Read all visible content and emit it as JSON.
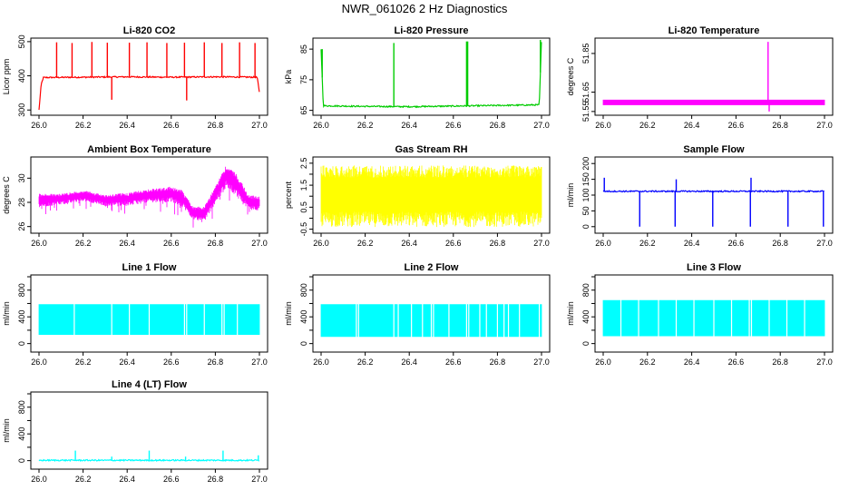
{
  "figure": {
    "title": "NWR_061026  2 Hz Diagnostics"
  },
  "chart_data": [
    {
      "type": "line",
      "title": "Li-820 CO2",
      "ylabel": "Licor ppm",
      "xlim": [
        26.0,
        27.0
      ],
      "ylim": [
        290,
        505
      ],
      "xticks": [
        "26.0",
        "26.2",
        "26.4",
        "26.6",
        "26.8",
        "27.0"
      ],
      "yticks": [
        300,
        400,
        500
      ],
      "color": "#ff0000",
      "series": [
        {
          "name": "CO2",
          "x": [
            26.0,
            26.01,
            26.02,
            26.2,
            26.4,
            26.6,
            26.8,
            26.99,
            27.0
          ],
          "values": [
            300,
            375,
            395,
            396,
            397,
            396,
            397,
            396,
            350
          ]
        }
      ],
      "spikes": [
        {
          "x": 26.08,
          "values": [
            498
          ]
        },
        {
          "x": 26.15,
          "values": [
            496
          ]
        },
        {
          "x": 26.24,
          "values": [
            499
          ]
        },
        {
          "x": 26.31,
          "values": [
            497
          ]
        },
        {
          "x": 26.33,
          "values": [
            330
          ]
        },
        {
          "x": 26.41,
          "values": [
            497
          ]
        },
        {
          "x": 26.49,
          "values": [
            498
          ]
        },
        {
          "x": 26.58,
          "values": [
            496
          ]
        },
        {
          "x": 26.66,
          "values": [
            497
          ]
        },
        {
          "x": 26.67,
          "values": [
            328
          ]
        },
        {
          "x": 26.75,
          "values": [
            498
          ]
        },
        {
          "x": 26.83,
          "values": [
            496
          ]
        },
        {
          "x": 26.91,
          "values": [
            498
          ]
        },
        {
          "x": 26.98,
          "values": [
            496
          ]
        }
      ]
    },
    {
      "type": "line",
      "title": "Li-820 Pressure",
      "ylabel": "kPa",
      "xlim": [
        26.0,
        27.0
      ],
      "ylim": [
        64,
        88
      ],
      "xticks": [
        "26.0",
        "26.2",
        "26.4",
        "26.6",
        "26.8",
        "27.0"
      ],
      "yticks": [
        65,
        75,
        85
      ],
      "color": "#00cc00",
      "series": [
        {
          "name": "Pressure",
          "x": [
            26.0,
            26.01,
            26.2,
            26.4,
            26.6,
            26.8,
            26.99,
            27.0
          ],
          "values": [
            85,
            66.5,
            66.3,
            66.2,
            66.4,
            66.6,
            66.8,
            88
          ]
        }
      ],
      "spikes": [
        {
          "x": 26.005,
          "values": [
            85
          ]
        },
        {
          "x": 26.33,
          "values": [
            87
          ]
        },
        {
          "x": 26.66,
          "values": [
            87.5
          ]
        },
        {
          "x": 26.665,
          "values": [
            87.5
          ]
        },
        {
          "x": 26.995,
          "values": [
            88
          ]
        }
      ]
    },
    {
      "type": "area",
      "title": "Li-820 Temperature",
      "ylabel": "degrees C",
      "xlim": [
        26.0,
        27.0
      ],
      "ylim": [
        51.54,
        51.92
      ],
      "xticks": [
        "26.0",
        "26.2",
        "26.4",
        "26.6",
        "26.8",
        "27.0"
      ],
      "yticks": [
        "51.55",
        "51.65",
        "51.85"
      ],
      "color": "#ff00ff",
      "series": [
        {
          "name": "Temperature",
          "x": [
            26.0,
            27.0
          ],
          "low": [
            51.583,
            51.583
          ],
          "high": [
            51.611,
            51.611
          ]
        }
      ],
      "spikes": [
        {
          "x": 26.745,
          "values": [
            51.91
          ]
        },
        {
          "x": 26.75,
          "values": [
            51.55
          ]
        }
      ]
    },
    {
      "type": "area",
      "title": "Ambient Box Temperature",
      "ylabel": "degrees C",
      "xlim": [
        26.0,
        27.0
      ],
      "ylim": [
        25.6,
        31.6
      ],
      "xticks": [
        "26.0",
        "26.2",
        "26.4",
        "26.6",
        "26.8",
        "27.0"
      ],
      "yticks": [
        26,
        28,
        30
      ],
      "color": "#ff00ff",
      "series": [
        {
          "name": "Ambient",
          "x": [
            26.0,
            26.1,
            26.2,
            26.3,
            26.4,
            26.5,
            26.6,
            26.65,
            26.7,
            26.75,
            26.8,
            26.85,
            26.9,
            26.95,
            27.0
          ],
          "low": [
            27.6,
            27.8,
            28.1,
            27.7,
            27.7,
            28.0,
            28.0,
            27.6,
            26.6,
            26.4,
            27.9,
            29.2,
            28.4,
            27.4,
            27.3
          ],
          "high": [
            28.7,
            28.7,
            29.0,
            28.6,
            28.8,
            29.1,
            29.3,
            29.0,
            27.6,
            27.7,
            29.3,
            31.1,
            30.3,
            28.6,
            28.5
          ]
        }
      ]
    },
    {
      "type": "area",
      "title": "Gas Stream RH",
      "ylabel": "percent",
      "xlim": [
        26.0,
        27.0
      ],
      "ylim": [
        -0.6,
        2.7
      ],
      "xticks": [
        "26.0",
        "26.2",
        "26.4",
        "26.6",
        "26.8",
        "27.0"
      ],
      "yticks": [
        "-0.5",
        "0.5",
        "1.5",
        "2.5"
      ],
      "ytickall": [
        "-0.5",
        "0.0",
        "0.5",
        "1.0",
        "1.5",
        "2.0",
        "2.5"
      ],
      "color": "#ffff00",
      "series": [
        {
          "name": "RH",
          "x": [
            26.0,
            27.0
          ],
          "low": [
            -0.4,
            -0.4
          ],
          "high": [
            2.4,
            2.4
          ]
        }
      ]
    },
    {
      "type": "line",
      "title": "Sample Flow",
      "ylabel": "ml/min",
      "xlim": [
        26.0,
        27.0
      ],
      "ylim": [
        -15,
        215
      ],
      "xticks": [
        "26.0",
        "26.2",
        "26.4",
        "26.6",
        "26.8",
        "27.0"
      ],
      "yticks": [
        0,
        50,
        100,
        150,
        200
      ],
      "color": "#0000ff",
      "series": [
        {
          "name": "Sample",
          "x": [
            26.0,
            27.0
          ],
          "values": [
            112,
            112
          ]
        }
      ],
      "spikes": [
        {
          "x": 26.005,
          "values": [
            155
          ]
        },
        {
          "x": 26.165,
          "values": [
            0
          ]
        },
        {
          "x": 26.325,
          "values": [
            0
          ]
        },
        {
          "x": 26.33,
          "values": [
            150
          ]
        },
        {
          "x": 26.495,
          "values": [
            0
          ]
        },
        {
          "x": 26.665,
          "values": [
            0
          ]
        },
        {
          "x": 26.668,
          "values": [
            155
          ]
        },
        {
          "x": 26.835,
          "values": [
            0
          ]
        },
        {
          "x": 26.995,
          "values": [
            0
          ]
        }
      ]
    },
    {
      "type": "area",
      "title": "Line 1 Flow",
      "ylabel": "ml/min",
      "xlim": [
        26.0,
        27.0
      ],
      "ylim": [
        -100,
        1000
      ],
      "xticks": [
        "26.0",
        "26.2",
        "26.4",
        "26.6",
        "26.8",
        "27.0"
      ],
      "yticks": [
        0,
        400,
        800
      ],
      "ytickall": [
        0,
        200,
        400,
        600,
        800,
        1000
      ],
      "color": "#00ffff",
      "series": [
        {
          "name": "Line1",
          "x": [
            26.0,
            27.0
          ],
          "low": [
            130,
            130
          ],
          "high": [
            590,
            590
          ]
        }
      ],
      "gaps": [
        26.16,
        26.33,
        26.41,
        26.5,
        26.66,
        26.67,
        26.75,
        26.83,
        26.84,
        26.9
      ]
    },
    {
      "type": "area",
      "title": "Line 2 Flow",
      "ylabel": "ml/min",
      "xlim": [
        26.0,
        27.0
      ],
      "ylim": [
        -100,
        1000
      ],
      "xticks": [
        "26.0",
        "26.2",
        "26.4",
        "26.6",
        "26.8",
        "27.0"
      ],
      "yticks": [
        0,
        400,
        800
      ],
      "ytickall": [
        0,
        200,
        400,
        600,
        800,
        1000
      ],
      "color": "#00ffff",
      "series": [
        {
          "name": "Line2",
          "x": [
            26.0,
            27.0
          ],
          "low": [
            100,
            100
          ],
          "high": [
            590,
            590
          ]
        }
      ],
      "gaps": [
        26.16,
        26.17,
        26.33,
        26.35,
        26.41,
        26.46,
        26.5,
        26.51,
        26.58,
        26.66,
        26.67,
        26.72,
        26.75,
        26.8,
        26.83,
        26.85,
        26.9,
        26.99
      ]
    },
    {
      "type": "area",
      "title": "Line 3 Flow",
      "ylabel": "ml/min",
      "xlim": [
        26.0,
        27.0
      ],
      "ylim": [
        -100,
        1000
      ],
      "xticks": [
        "26.0",
        "26.2",
        "26.4",
        "26.6",
        "26.8",
        "27.0"
      ],
      "yticks": [
        0,
        400,
        800
      ],
      "ytickall": [
        0,
        200,
        400,
        600,
        800,
        1000
      ],
      "color": "#00ffff",
      "series": [
        {
          "name": "Line3",
          "x": [
            26.0,
            27.0
          ],
          "low": [
            110,
            110
          ],
          "high": [
            650,
            650
          ]
        }
      ],
      "gaps": [
        26.08,
        26.16,
        26.25,
        26.33,
        26.41,
        26.5,
        26.58,
        26.66,
        26.67,
        26.75,
        26.83,
        26.91
      ]
    },
    {
      "type": "line",
      "title": "Line 4 (LT) Flow",
      "ylabel": "ml/min",
      "xlim": [
        26.0,
        27.0
      ],
      "ylim": [
        -100,
        1000
      ],
      "xticks": [
        "26.0",
        "26.2",
        "26.4",
        "26.6",
        "26.8",
        "27.0"
      ],
      "yticks": [
        0,
        400,
        800
      ],
      "ytickall": [
        0,
        200,
        400,
        600,
        800,
        1000
      ],
      "color": "#00ffff",
      "series": [
        {
          "name": "Line4",
          "x": [
            26.0,
            27.0
          ],
          "values": [
            5,
            5
          ]
        }
      ],
      "spikes": [
        {
          "x": 26.165,
          "values": [
            150
          ]
        },
        {
          "x": 26.33,
          "values": [
            60
          ]
        },
        {
          "x": 26.5,
          "values": [
            150
          ]
        },
        {
          "x": 26.665,
          "values": [
            60
          ]
        },
        {
          "x": 26.835,
          "values": [
            150
          ]
        },
        {
          "x": 26.995,
          "values": [
            80
          ]
        }
      ]
    }
  ]
}
